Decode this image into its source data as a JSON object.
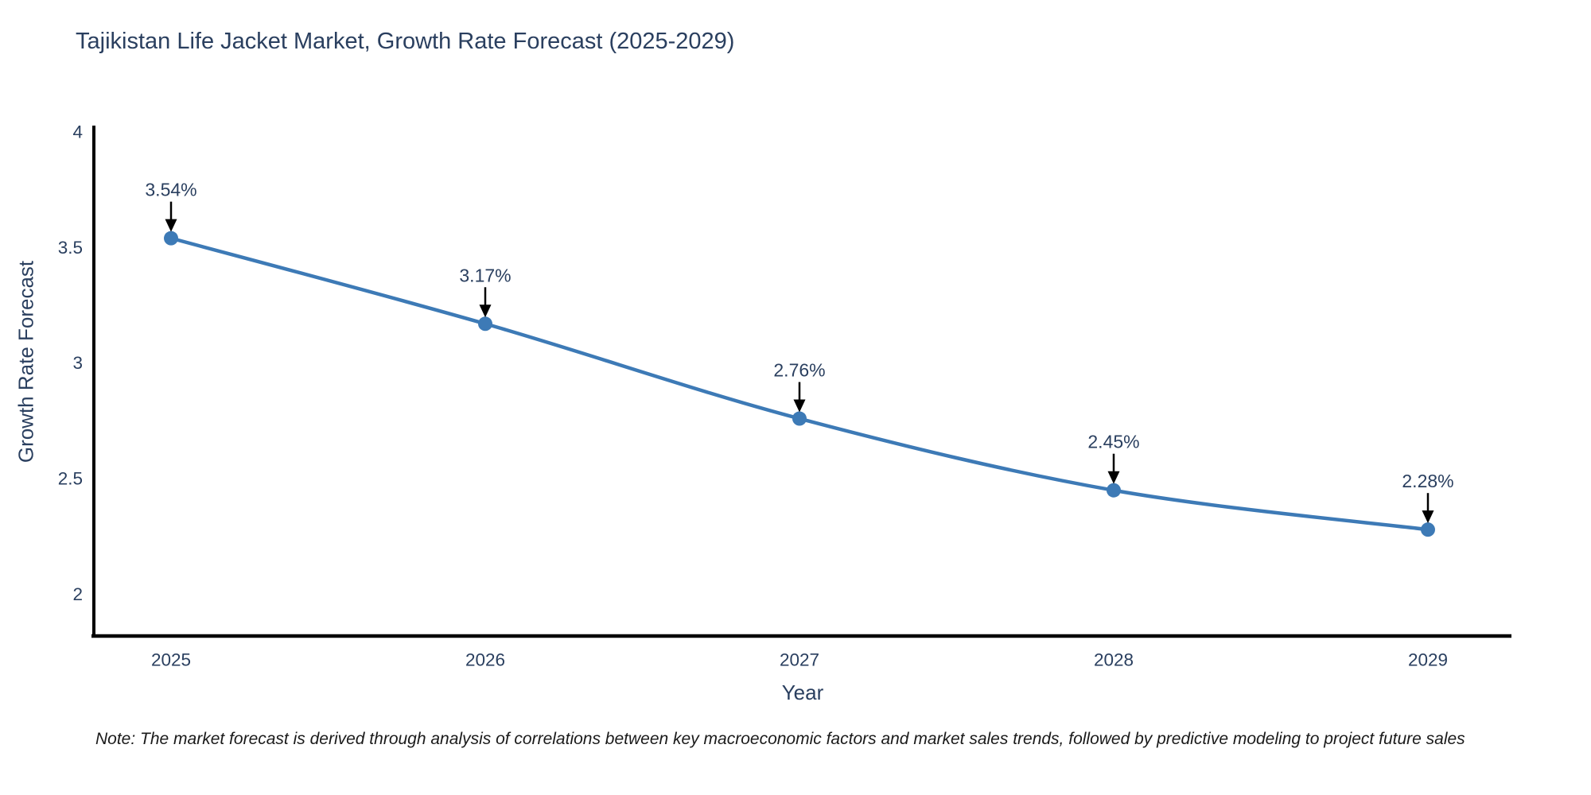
{
  "note": "Note: The market forecast is derived through analysis of correlations between key macroeconomic factors and market sales trends, followed by predictive modeling to project future sales",
  "chart_data": {
    "type": "line",
    "title": "Tajikistan Life Jacket Market, Growth Rate Forecast (2025-2029)",
    "xlabel": "Year",
    "ylabel": "Growth Rate Forecast",
    "x": [
      "2025",
      "2026",
      "2027",
      "2028",
      "2029"
    ],
    "values": [
      3.54,
      3.17,
      2.76,
      2.45,
      2.28
    ],
    "point_labels": [
      "3.54%",
      "3.17%",
      "2.76%",
      "2.45%",
      "2.28%"
    ],
    "yticks": [
      2,
      2.5,
      3,
      3.5,
      4
    ],
    "ylim": [
      1.82,
      4.02
    ],
    "grid": false,
    "legend": "none",
    "line_color": "#3d7ab6",
    "marker_color": "#3d7ab6",
    "axis_color": "#000000",
    "annotation_arrow_color": "#000000",
    "text_color": "#2a3f5f"
  }
}
